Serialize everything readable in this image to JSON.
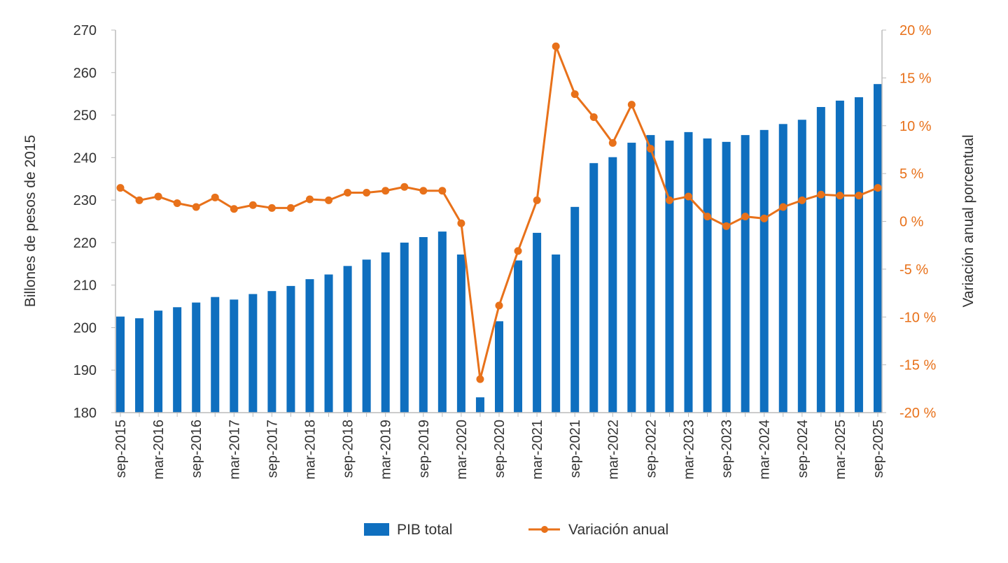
{
  "chart_data": {
    "type": "bar+line",
    "title": "",
    "categories": [
      "sep-2015",
      "",
      "mar-2016",
      "",
      "sep-2016",
      "",
      "mar-2017",
      "",
      "sep-2017",
      "",
      "mar-2018",
      "",
      "sep-2018",
      "",
      "mar-2019",
      "",
      "sep-2019",
      "",
      "mar-2020",
      "",
      "sep-2020",
      "",
      "mar-2021",
      "",
      "sep-2021",
      "",
      "mar-2022",
      "",
      "sep-2022",
      "",
      "mar-2023",
      "",
      "sep-2023",
      "",
      "mar-2024",
      "",
      "sep-2024",
      "",
      "mar-2025",
      "",
      "sep-2025"
    ],
    "ylabel_left": "Billones de pesos de 2015",
    "ylabel_right": "Variación anual porcentual",
    "ylim_left": [
      180,
      270
    ],
    "ylim_right": [
      -20,
      20
    ],
    "left_ticks": [
      "180",
      "190",
      "200",
      "210",
      "220",
      "230",
      "240",
      "250",
      "260",
      "270"
    ],
    "right_ticks": [
      "-20 %",
      "-15 %",
      "-10 %",
      "-5 %",
      "0 %",
      "5 %",
      "10 %",
      "15 %",
      "20 %"
    ],
    "grid": false,
    "legend_position": "bottom",
    "series": [
      {
        "name": "PIB total",
        "type": "bar",
        "axis": "left",
        "color": "#0F6FBF",
        "values": [
          202.6,
          202.2,
          204.0,
          204.8,
          205.9,
          207.2,
          206.6,
          207.9,
          208.6,
          209.8,
          211.4,
          212.5,
          214.5,
          216.0,
          217.7,
          220.0,
          221.3,
          222.6,
          217.2,
          183.6,
          201.5,
          215.8,
          222.3,
          217.2,
          228.4,
          238.7,
          240.1,
          243.5,
          245.3,
          244.0,
          246.0,
          244.5,
          243.7,
          245.3,
          246.5,
          247.9,
          248.9,
          251.9,
          253.4,
          254.2,
          257.3
        ]
      },
      {
        "name": "Variación anual",
        "type": "line",
        "axis": "right",
        "color": "#E8711A",
        "values": [
          3.5,
          2.2,
          2.6,
          1.9,
          1.5,
          2.5,
          1.3,
          1.7,
          1.4,
          1.4,
          2.3,
          2.2,
          3.0,
          3.0,
          3.2,
          3.6,
          3.2,
          3.2,
          -0.2,
          -16.5,
          -8.8,
          -3.1,
          2.2,
          18.3,
          13.3,
          10.9,
          8.2,
          12.2,
          7.6,
          2.2,
          2.6,
          0.5,
          -0.5,
          0.5,
          0.3,
          1.5,
          2.2,
          2.8,
          2.7,
          2.7,
          3.5
        ]
      }
    ]
  }
}
